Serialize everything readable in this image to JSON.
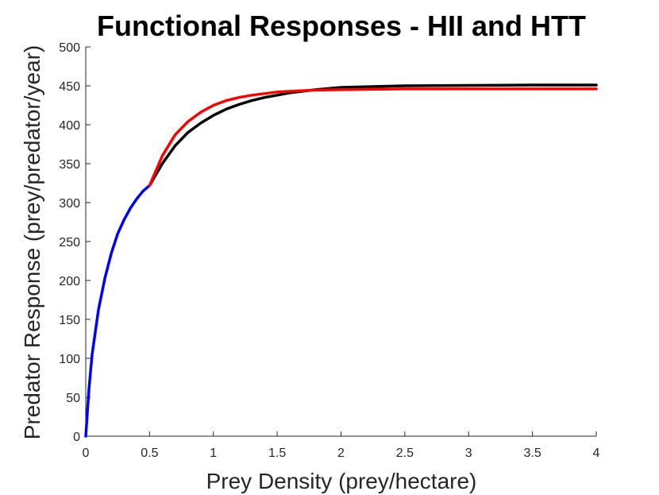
{
  "chart_data": {
    "type": "line",
    "title": "Functional Responses - HII and HTT",
    "xlabel": "Prey Density (prey/hectare)",
    "ylabel": "Predator Response (prey/predator/year)",
    "xlim": [
      0,
      4
    ],
    "ylim": [
      0,
      500
    ],
    "xticks": [
      0,
      0.5,
      1,
      1.5,
      2,
      2.5,
      3,
      3.5,
      4
    ],
    "xtick_labels": [
      "0",
      "0.5",
      "1",
      "1.5",
      "2",
      "2.5",
      "3",
      "3.5",
      "4"
    ],
    "yticks": [
      0,
      50,
      100,
      150,
      200,
      250,
      300,
      350,
      400,
      450,
      500
    ],
    "ytick_labels": [
      "0",
      "50",
      "100",
      "150",
      "200",
      "250",
      "300",
      "350",
      "400",
      "450",
      "500"
    ],
    "grid": false,
    "legend": "none",
    "series": [
      {
        "color": "#0000ff",
        "x": [
          0,
          0.025,
          0.05,
          0.1,
          0.15,
          0.2,
          0.25,
          0.3,
          0.35,
          0.4,
          0.45,
          0.5
        ],
        "y": [
          0,
          60,
          105,
          163,
          203,
          235,
          260,
          278,
          293,
          305,
          315,
          322
        ]
      },
      {
        "color": "#000000",
        "x": [
          0.5,
          0.6,
          0.7,
          0.8,
          0.9,
          1.0,
          1.1,
          1.2,
          1.3,
          1.4,
          1.5,
          1.6,
          1.8,
          2.0,
          2.5,
          3.0,
          3.5,
          4.0
        ],
        "y": [
          322,
          350,
          373,
          390,
          402,
          412,
          420,
          426,
          431,
          435,
          438,
          441,
          445,
          448,
          450,
          450.5,
          451,
          451
        ]
      },
      {
        "color": "#ff0000",
        "x": [
          0.5,
          0.6,
          0.7,
          0.8,
          0.9,
          1.0,
          1.1,
          1.2,
          1.3,
          1.4,
          1.5,
          1.6,
          1.8,
          2.0,
          2.5,
          3.0,
          3.5,
          4.0
        ],
        "y": [
          322,
          360,
          387,
          404,
          416,
          425,
          431,
          435,
          438,
          440,
          442,
          443,
          444.5,
          445,
          446,
          446,
          446,
          446
        ]
      }
    ]
  }
}
